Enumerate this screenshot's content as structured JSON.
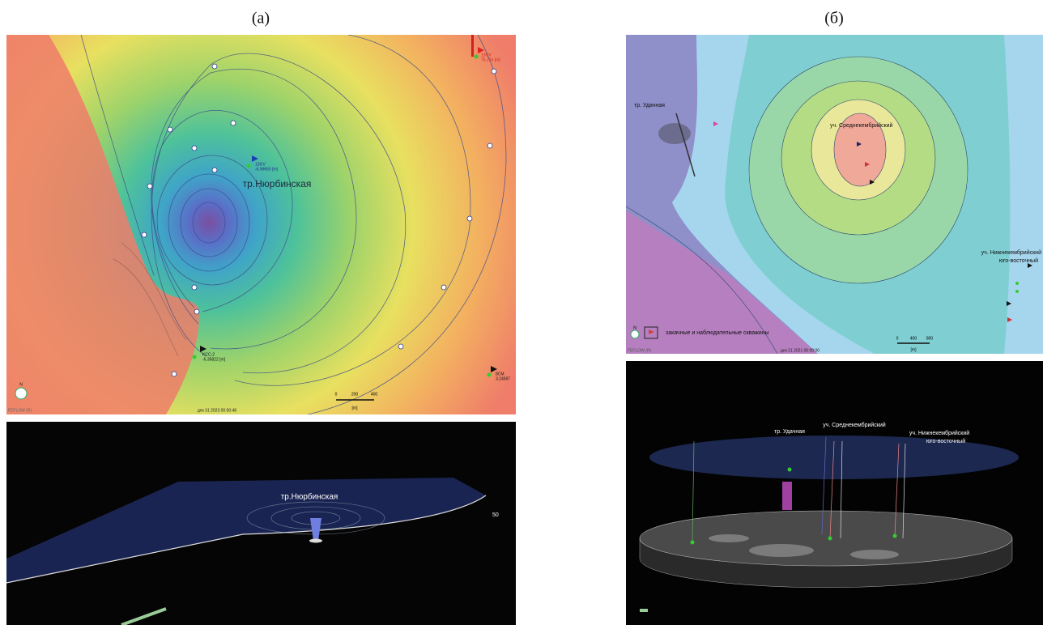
{
  "panels": [
    {
      "label": "(а)",
      "top_map": {
        "area_label": "тр.Нюрбинская",
        "wells": [
          {
            "name": "13GV",
            "value": "-6.99655 [m]"
          },
          {
            "name": "KCC-2",
            "value": "-6.35822 [m]"
          },
          {
            "name": "13GV",
            "value": "75.214 [m]"
          },
          {
            "name": "8CM",
            "value": "3.24597"
          }
        ],
        "north": "N",
        "software": "FEFLOW (R)",
        "timestamp": "дек 31 2023 00:00:48",
        "scale": [
          "0",
          "200",
          "400"
        ],
        "scale_unit": "[m]"
      },
      "bottom_view": {
        "area_label": "тр.Нюрбинская",
        "marker": "50"
      }
    },
    {
      "label": "(б)",
      "top_map": {
        "area_labels": [
          "тр. Удачная",
          "уч. Среднекембрийский",
          "уч. Нижнекембрийский",
          "юго-восточный"
        ],
        "legend": "закачные и наблюдательные скважины",
        "north": "N",
        "software": "FEFLOW (R)",
        "timestamp": "дек 21 2021 00:00:00",
        "scale": [
          "0",
          "400",
          "800"
        ],
        "scale_unit": "[m]"
      },
      "bottom_view": {
        "area_labels": [
          "тр. Удачная",
          "уч. Среднекембрийский",
          "уч. Нижнекембрийский",
          "юго-восточный"
        ]
      }
    }
  ]
}
